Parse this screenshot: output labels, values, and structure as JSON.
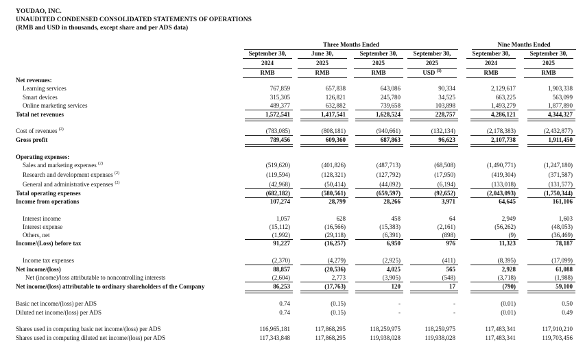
{
  "header": {
    "company": "YOUDAO, INC.",
    "title": "UNAUDITED CONDENSED CONSOLIDATED STATEMENTS OF OPERATIONS",
    "subtitle": "(RMB and USD in thousands, except share and per ADS data)"
  },
  "table": {
    "groups": [
      "Three Months Ended",
      "Nine Months Ended"
    ],
    "columns": [
      {
        "date": "September 30,",
        "year": "2024",
        "currency": "RMB"
      },
      {
        "date": "June 30,",
        "year": "2025",
        "currency": "RMB"
      },
      {
        "date": "September 30,",
        "year": "2025",
        "currency": "RMB"
      },
      {
        "date": "September 30,",
        "year": "2025",
        "currency": "USD",
        "note": "(1)"
      },
      {
        "date": "September 30,",
        "year": "2024",
        "currency": "RMB"
      },
      {
        "date": "September 30,",
        "year": "2025",
        "currency": "RMB"
      }
    ],
    "rows": [
      {
        "label": "Net revenues:"
      },
      {
        "label": "Learning services",
        "values": [
          "767,859",
          "657,838",
          "643,086",
          "90,334",
          "2,129,617",
          "1,903,338"
        ]
      },
      {
        "label": "Smart devices",
        "values": [
          "315,305",
          "126,821",
          "245,780",
          "34,525",
          "663,225",
          "563,099"
        ]
      },
      {
        "label": "Online marketing services",
        "values": [
          "489,377",
          "632,882",
          "739,658",
          "103,898",
          "1,493,279",
          "1,877,890"
        ]
      },
      {
        "label": "Total net revenues",
        "values": [
          "1,572,541",
          "1,417,541",
          "1,628,524",
          "228,757",
          "4,286,121",
          "4,344,327"
        ]
      },
      {
        "label": "Cost of revenues",
        "note": "(2)",
        "values": [
          "(783,085)",
          "(808,181)",
          "(940,661)",
          "(132,134)",
          "(2,178,383)",
          "(2,432,877)"
        ]
      },
      {
        "label": "Gross profit",
        "values": [
          "789,456",
          "609,360",
          "687,863",
          "96,623",
          "2,107,738",
          "1,911,450"
        ]
      },
      {
        "label": "Operating expenses:"
      },
      {
        "label": "Sales and marketing expenses",
        "note": "(2)",
        "values": [
          "(519,620)",
          "(401,826)",
          "(487,713)",
          "(68,508)",
          "(1,490,771)",
          "(1,247,180)"
        ]
      },
      {
        "label": "Research and development expenses",
        "note": "(2)",
        "values": [
          "(119,594)",
          "(128,321)",
          "(127,792)",
          "(17,950)",
          "(419,304)",
          "(371,587)"
        ]
      },
      {
        "label": "General and administrative expenses",
        "note": "(2)",
        "values": [
          "(42,968)",
          "(50,414)",
          "(44,092)",
          "(6,194)",
          "(133,018)",
          "(131,577)"
        ]
      },
      {
        "label": "Total operating expenses",
        "values": [
          "(682,182)",
          "(580,561)",
          "(659,597)",
          "(92,652)",
          "(2,043,093)",
          "(1,750,344)"
        ]
      },
      {
        "label": "Income from operations",
        "values": [
          "107,274",
          "28,799",
          "28,266",
          "3,971",
          "64,645",
          "161,106"
        ]
      },
      {
        "label": "Interest income",
        "values": [
          "1,057",
          "628",
          "458",
          "64",
          "2,949",
          "1,603"
        ]
      },
      {
        "label": "Interest expense",
        "values": [
          "(15,112)",
          "(16,566)",
          "(15,383)",
          "(2,161)",
          "(56,262)",
          "(48,053)"
        ]
      },
      {
        "label": "Others, net",
        "values": [
          "(1,992)",
          "(29,118)",
          "(6,391)",
          "(898)",
          "(9)",
          "(36,469)"
        ]
      },
      {
        "label": "Income/(Loss) before tax",
        "values": [
          "91,227",
          "(16,257)",
          "6,950",
          "976",
          "11,323",
          "78,187"
        ]
      },
      {
        "label": "Income tax expenses",
        "values": [
          "(2,370)",
          "(4,279)",
          "(2,925)",
          "(411)",
          "(8,395)",
          "(17,099)"
        ]
      },
      {
        "label": "Net income/(loss)",
        "values": [
          "88,857",
          "(20,536)",
          "4,025",
          "565",
          "2,928",
          "61,088"
        ]
      },
      {
        "label": "Net (income)/loss attributable to noncontrolling interests",
        "values": [
          "(2,604)",
          "2,773",
          "(3,905)",
          "(548)",
          "(3,718)",
          "(1,988)"
        ]
      },
      {
        "label": "Net income/(loss) attributable to ordinary shareholders of the Company",
        "values": [
          "86,253",
          "(17,763)",
          "120",
          "17",
          "(790)",
          "59,100"
        ]
      },
      {
        "label": "Basic net income/(loss) per ADS",
        "values": [
          "0.74",
          "(0.15)",
          "-",
          "-",
          "(0.01)",
          "0.50"
        ]
      },
      {
        "label": "Diluted net income/(loss) per ADS",
        "values": [
          "0.74",
          "(0.15)",
          "-",
          "-",
          "(0.01)",
          "0.49"
        ]
      },
      {
        "label": "Shares used in computing basic net income/(loss) per ADS",
        "values": [
          "116,965,181",
          "117,868,295",
          "118,259,975",
          "118,259,975",
          "117,483,341",
          "117,910,210"
        ]
      },
      {
        "label": "Shares used in computing diluted net income/(loss) per ADS",
        "values": [
          "117,343,848",
          "117,868,295",
          "119,938,028",
          "119,938,028",
          "117,483,341",
          "119,703,456"
        ]
      }
    ]
  }
}
